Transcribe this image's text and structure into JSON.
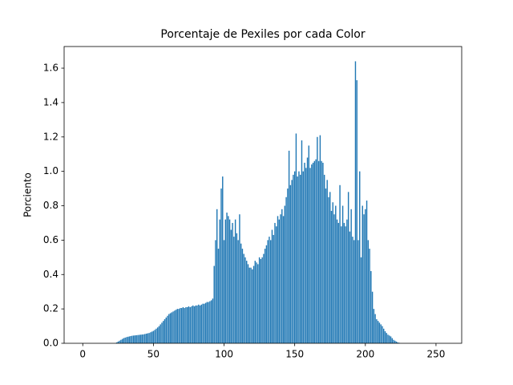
{
  "chart_data": {
    "type": "bar",
    "title": "Porcentaje de Pexiles por cada Color",
    "ylabel": "Porciento",
    "color": "#1f77b4",
    "x": [
      0,
      1,
      2,
      3,
      4,
      5,
      6,
      7,
      8,
      9,
      10,
      11,
      12,
      13,
      14,
      15,
      16,
      17,
      18,
      19,
      20,
      21,
      22,
      23,
      24,
      25,
      26,
      27,
      28,
      29,
      30,
      31,
      32,
      33,
      34,
      35,
      36,
      37,
      38,
      39,
      40,
      41,
      42,
      43,
      44,
      45,
      46,
      47,
      48,
      49,
      50,
      51,
      52,
      53,
      54,
      55,
      56,
      57,
      58,
      59,
      60,
      61,
      62,
      63,
      64,
      65,
      66,
      67,
      68,
      69,
      70,
      71,
      72,
      73,
      74,
      75,
      76,
      77,
      78,
      79,
      80,
      81,
      82,
      83,
      84,
      85,
      86,
      87,
      88,
      89,
      90,
      91,
      92,
      93,
      94,
      95,
      96,
      97,
      98,
      99,
      100,
      101,
      102,
      103,
      104,
      105,
      106,
      107,
      108,
      109,
      110,
      111,
      112,
      113,
      114,
      115,
      116,
      117,
      118,
      119,
      120,
      121,
      122,
      123,
      124,
      125,
      126,
      127,
      128,
      129,
      130,
      131,
      132,
      133,
      134,
      135,
      136,
      137,
      138,
      139,
      140,
      141,
      142,
      143,
      144,
      145,
      146,
      147,
      148,
      149,
      150,
      151,
      152,
      153,
      154,
      155,
      156,
      157,
      158,
      159,
      160,
      161,
      162,
      163,
      164,
      165,
      166,
      167,
      168,
      169,
      170,
      171,
      172,
      173,
      174,
      175,
      176,
      177,
      178,
      179,
      180,
      181,
      182,
      183,
      184,
      185,
      186,
      187,
      188,
      189,
      190,
      191,
      192,
      193,
      194,
      195,
      196,
      197,
      198,
      199,
      200,
      201,
      202,
      203,
      204,
      205,
      206,
      207,
      208,
      209,
      210,
      211,
      212,
      213,
      214,
      215,
      216,
      217,
      218,
      219,
      220,
      221,
      222,
      223,
      224,
      225,
      226,
      227,
      228,
      229,
      230,
      231,
      232,
      233,
      234,
      235,
      236,
      237,
      238,
      239,
      240,
      241,
      242,
      243,
      244,
      245,
      246,
      247,
      248,
      249,
      250,
      251,
      252,
      253,
      254,
      255
    ],
    "values": [
      0,
      0,
      0,
      0,
      0,
      0,
      0,
      0,
      0,
      0,
      0,
      0,
      0,
      0,
      0,
      0,
      0,
      0,
      0,
      0,
      0,
      0,
      0,
      0,
      0.005,
      0.01,
      0.015,
      0.02,
      0.025,
      0.03,
      0.033,
      0.036,
      0.038,
      0.04,
      0.042,
      0.044,
      0.045,
      0.046,
      0.047,
      0.048,
      0.049,
      0.05,
      0.051,
      0.052,
      0.054,
      0.056,
      0.058,
      0.06,
      0.064,
      0.068,
      0.072,
      0.078,
      0.085,
      0.092,
      0.1,
      0.11,
      0.12,
      0.13,
      0.14,
      0.15,
      0.16,
      0.17,
      0.175,
      0.18,
      0.185,
      0.19,
      0.195,
      0.2,
      0.2,
      0.205,
      0.205,
      0.21,
      0.205,
      0.21,
      0.21,
      0.215,
      0.21,
      0.215,
      0.22,
      0.215,
      0.22,
      0.22,
      0.225,
      0.22,
      0.225,
      0.23,
      0.23,
      0.235,
      0.24,
      0.24,
      0.245,
      0.25,
      0.26,
      0.45,
      0.6,
      0.78,
      0.55,
      0.72,
      0.9,
      0.97,
      0.6,
      0.72,
      0.76,
      0.74,
      0.72,
      0.66,
      0.7,
      0.62,
      0.72,
      0.64,
      0.6,
      0.75,
      0.58,
      0.55,
      0.52,
      0.5,
      0.48,
      0.46,
      0.44,
      0.44,
      0.43,
      0.45,
      0.48,
      0.47,
      0.46,
      0.5,
      0.49,
      0.5,
      0.52,
      0.55,
      0.57,
      0.6,
      0.62,
      0.6,
      0.66,
      0.63,
      0.7,
      0.68,
      0.74,
      0.72,
      0.75,
      0.78,
      0.74,
      0.8,
      0.85,
      0.9,
      1.12,
      0.92,
      0.95,
      0.98,
      1.0,
      1.22,
      0.97,
      1.0,
      0.98,
      1.18,
      1.0,
      1.05,
      1.02,
      1.08,
      1.15,
      1.02,
      1.04,
      1.05,
      1.06,
      1.07,
      1.2,
      1.06,
      1.21,
      1.06,
      1.05,
      0.98,
      0.9,
      0.95,
      0.85,
      0.88,
      0.77,
      0.82,
      0.75,
      0.8,
      0.72,
      0.7,
      0.92,
      0.68,
      0.8,
      0.7,
      0.68,
      0.72,
      0.88,
      0.65,
      0.78,
      0.62,
      0.6,
      1.64,
      1.53,
      0.6,
      1.0,
      0.5,
      0.8,
      0.75,
      0.78,
      0.83,
      0.6,
      0.55,
      0.42,
      0.3,
      0.2,
      0.17,
      0.14,
      0.13,
      0.12,
      0.11,
      0.1,
      0.085,
      0.07,
      0.06,
      0.05,
      0.045,
      0.04,
      0.03,
      0.02,
      0.015,
      0.01,
      0.005,
      0.003,
      0,
      0,
      0,
      0,
      0,
      0,
      0,
      0,
      0,
      0,
      0,
      0,
      0,
      0,
      0,
      0,
      0,
      0,
      0,
      0,
      0,
      0,
      0,
      0,
      0,
      0,
      0,
      0,
      0,
      0,
      0
    ],
    "xlim": [
      -13.19,
      268.19
    ],
    "xticks": [
      0,
      50,
      100,
      150,
      200,
      250
    ],
    "ylim": [
      0,
      1.726
    ],
    "yticks": [
      {
        "value": 0,
        "label": "0.0"
      },
      0.2,
      0.4,
      0.6,
      0.8,
      {
        "value": 1,
        "label": "1.0"
      },
      1.2,
      1.4,
      1.6
    ]
  }
}
